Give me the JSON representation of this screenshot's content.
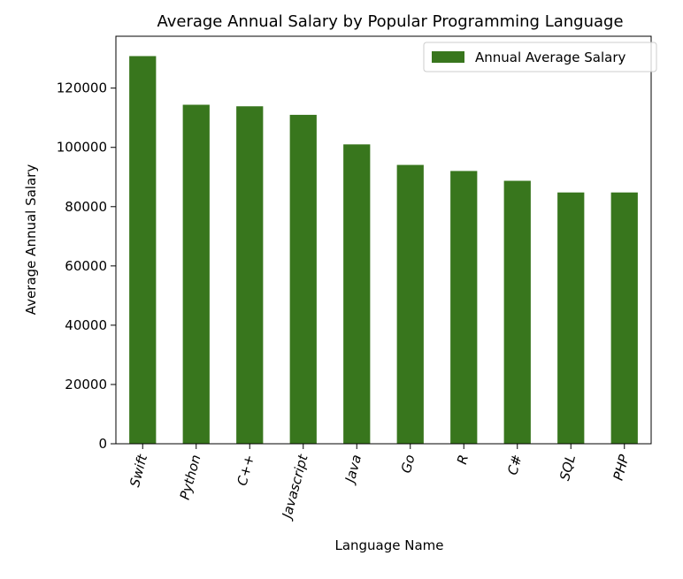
{
  "chart_data": {
    "type": "bar",
    "title": "Average Annual Salary by Popular Programming Language",
    "xlabel": "Language Name",
    "ylabel": "Average Annual Salary",
    "categories": [
      "Swift",
      "Python",
      "C++",
      "Javascript",
      "Java",
      "Go",
      "R",
      "C#",
      "SQL",
      "PHP"
    ],
    "series": [
      {
        "name": "Annual Average Salary",
        "color": "#38761d",
        "values": [
          130801,
          114383,
          113865,
          110981,
          101013,
          94082,
          92037,
          88726,
          84793,
          84793
        ]
      }
    ],
    "ylim": [
      0,
      137500
    ],
    "yticks": [
      0,
      20000,
      40000,
      60000,
      80000,
      100000,
      120000
    ],
    "ytick_labels": [
      "0",
      "20000",
      "40000",
      "60000",
      "80000",
      "100000",
      "120000"
    ],
    "grid": false,
    "legend": "top-right"
  }
}
